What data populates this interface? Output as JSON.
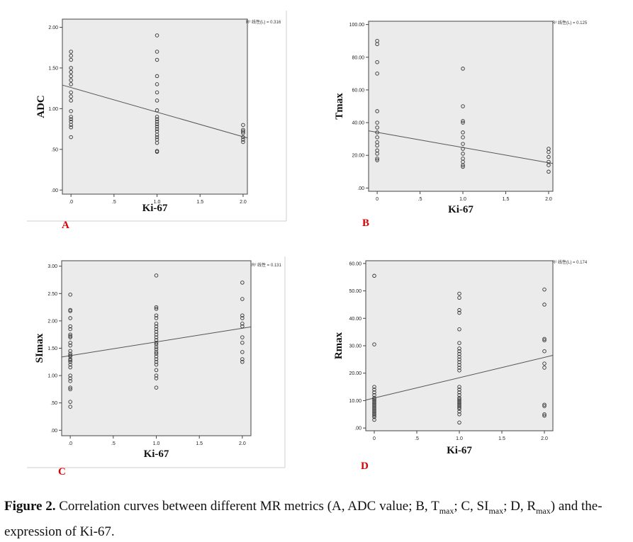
{
  "caption": {
    "lead": "Figure 2.",
    "t1": " Correlation curves between different MR metrics (A, ADC value; B, T",
    "s1": "max",
    "t2": "; C, SI",
    "s2": "max",
    "t3": "; D, R",
    "s3": "max",
    "t4": ") and the-expression of Ki-67."
  },
  "colors": {
    "panel_bg": "#ebebeb",
    "marker": "#333333",
    "fit_line": "#555555",
    "panel_letter": "#dd0000"
  },
  "chart_data": [
    {
      "type": "scatter",
      "panel_label": "A",
      "xlabel": "Ki-67",
      "ylabel": "ADC",
      "xlim": [
        -0.1,
        2.05
      ],
      "ylim": [
        -0.05,
        2.1
      ],
      "xticks": [
        0,
        0.5,
        1.0,
        1.5,
        2.0
      ],
      "xtick_labels": [
        ".0",
        ".5",
        "1.0",
        "1.5",
        "2.0"
      ],
      "yticks": [
        0,
        0.5,
        1.0,
        1.5,
        2.0
      ],
      "ytick_labels": [
        ".00",
        ".50",
        "1.00",
        "1.50",
        "2.00"
      ],
      "legend_text": "R² 线性(L) = 0.316",
      "fit_line": [
        [
          -0.1,
          1.29
        ],
        [
          2.05,
          0.64
        ]
      ],
      "points": [
        [
          0,
          1.7
        ],
        [
          0,
          1.65
        ],
        [
          0,
          1.6
        ],
        [
          0,
          1.5
        ],
        [
          0,
          1.45
        ],
        [
          0,
          1.4
        ],
        [
          0,
          1.35
        ],
        [
          0,
          1.3
        ],
        [
          0,
          1.2
        ],
        [
          0,
          1.15
        ],
        [
          0,
          1.1
        ],
        [
          0,
          0.97
        ],
        [
          0,
          0.9
        ],
        [
          0,
          0.87
        ],
        [
          0,
          0.84
        ],
        [
          0,
          0.8
        ],
        [
          0,
          0.77
        ],
        [
          0,
          0.65
        ],
        [
          1,
          1.9
        ],
        [
          1,
          1.7
        ],
        [
          1,
          1.6
        ],
        [
          1,
          1.4
        ],
        [
          1,
          1.3
        ],
        [
          1,
          1.2
        ],
        [
          1,
          1.1
        ],
        [
          1,
          0.98
        ],
        [
          1,
          0.9
        ],
        [
          1,
          0.87
        ],
        [
          1,
          0.84
        ],
        [
          1,
          0.81
        ],
        [
          1,
          0.78
        ],
        [
          1,
          0.75
        ],
        [
          1,
          0.72
        ],
        [
          1,
          0.68
        ],
        [
          1,
          0.65
        ],
        [
          1,
          0.62
        ],
        [
          1,
          0.58
        ],
        [
          1,
          0.48
        ],
        [
          1,
          0.47
        ],
        [
          2,
          0.8
        ],
        [
          2,
          0.74
        ],
        [
          2,
          0.72
        ],
        [
          2,
          0.7
        ],
        [
          2,
          0.65
        ],
        [
          2,
          0.62
        ],
        [
          2,
          0.59
        ]
      ]
    },
    {
      "type": "scatter",
      "panel_label": "B",
      "xlabel": "Ki-67",
      "ylabel": "Tmax",
      "xlim": [
        -0.1,
        2.05
      ],
      "ylim": [
        -2,
        102
      ],
      "xticks": [
        0,
        0.5,
        1.0,
        1.5,
        2.0
      ],
      "xtick_labels": [
        "0",
        ".5",
        "1.0",
        "1.5",
        "2.0"
      ],
      "yticks": [
        0,
        20,
        40,
        60,
        80,
        100
      ],
      "ytick_labels": [
        ".00",
        "20.00",
        "40.00",
        "60.00",
        "80.00",
        "100.00"
      ],
      "legend_text": "R² 线性(L) = 0.125",
      "fit_line": [
        [
          -0.1,
          35.0
        ],
        [
          2.05,
          15.0
        ]
      ],
      "points": [
        [
          0,
          90
        ],
        [
          0,
          88
        ],
        [
          0,
          77
        ],
        [
          0,
          70
        ],
        [
          0,
          47
        ],
        [
          0,
          40
        ],
        [
          0,
          37
        ],
        [
          0,
          34
        ],
        [
          0,
          31
        ],
        [
          0,
          28
        ],
        [
          0,
          26
        ],
        [
          0,
          23
        ],
        [
          0,
          21
        ],
        [
          0,
          18
        ],
        [
          0,
          17
        ],
        [
          1,
          73
        ],
        [
          1,
          50
        ],
        [
          1,
          41
        ],
        [
          1,
          40
        ],
        [
          1,
          34
        ],
        [
          1,
          31
        ],
        [
          1,
          27
        ],
        [
          1,
          24
        ],
        [
          1,
          21
        ],
        [
          1,
          18
        ],
        [
          1,
          16
        ],
        [
          1,
          14
        ],
        [
          1,
          13
        ],
        [
          2,
          24
        ],
        [
          2,
          22
        ],
        [
          2,
          19
        ],
        [
          2,
          16
        ],
        [
          2,
          14
        ],
        [
          2,
          10
        ]
      ]
    },
    {
      "type": "scatter",
      "panel_label": "C",
      "xlabel": "Ki-67",
      "ylabel": "SImax",
      "xlim": [
        -0.1,
        2.1
      ],
      "ylim": [
        -0.1,
        3.1
      ],
      "xticks": [
        0,
        0.5,
        1.0,
        1.5,
        2.0
      ],
      "xtick_labels": [
        ".0",
        ".5",
        "1.0",
        "1.5",
        "2.0"
      ],
      "yticks": [
        0,
        0.5,
        1.0,
        1.5,
        2.0,
        2.5,
        3.0
      ],
      "ytick_labels": [
        ".00",
        ".50",
        "1.00",
        "1.50",
        "2.00",
        "2.50",
        "3.00"
      ],
      "legend_text": "R² 线性 = 0.131",
      "fit_line": [
        [
          -0.1,
          1.34
        ],
        [
          2.1,
          1.89
        ]
      ],
      "points": [
        [
          0,
          2.48
        ],
        [
          0,
          2.2
        ],
        [
          0,
          2.18
        ],
        [
          0,
          2.05
        ],
        [
          0,
          1.9
        ],
        [
          0,
          1.85
        ],
        [
          0,
          1.75
        ],
        [
          0,
          1.72
        ],
        [
          0,
          1.7
        ],
        [
          0,
          1.6
        ],
        [
          0,
          1.55
        ],
        [
          0,
          1.45
        ],
        [
          0,
          1.4
        ],
        [
          0,
          1.37
        ],
        [
          0,
          1.35
        ],
        [
          0,
          1.3
        ],
        [
          0,
          1.28
        ],
        [
          0,
          1.25
        ],
        [
          0,
          1.2
        ],
        [
          0,
          1.15
        ],
        [
          0,
          1.0
        ],
        [
          0,
          0.95
        ],
        [
          0,
          0.9
        ],
        [
          0,
          0.78
        ],
        [
          0,
          0.75
        ],
        [
          0,
          0.52
        ],
        [
          0,
          0.43
        ],
        [
          1,
          2.83
        ],
        [
          1,
          2.25
        ],
        [
          1,
          2.22
        ],
        [
          1,
          2.1
        ],
        [
          1,
          2.05
        ],
        [
          1,
          1.95
        ],
        [
          1,
          1.9
        ],
        [
          1,
          1.85
        ],
        [
          1,
          1.8
        ],
        [
          1,
          1.75
        ],
        [
          1,
          1.7
        ],
        [
          1,
          1.65
        ],
        [
          1,
          1.6
        ],
        [
          1,
          1.57
        ],
        [
          1,
          1.52
        ],
        [
          1,
          1.48
        ],
        [
          1,
          1.43
        ],
        [
          1,
          1.4
        ],
        [
          1,
          1.35
        ],
        [
          1,
          1.3
        ],
        [
          1,
          1.25
        ],
        [
          1,
          1.2
        ],
        [
          1,
          1.1
        ],
        [
          1,
          1.0
        ],
        [
          1,
          0.95
        ],
        [
          1,
          0.78
        ],
        [
          2,
          2.7
        ],
        [
          2,
          2.4
        ],
        [
          2,
          2.1
        ],
        [
          2,
          2.05
        ],
        [
          2,
          1.95
        ],
        [
          2,
          1.9
        ],
        [
          2,
          1.7
        ],
        [
          2,
          1.6
        ],
        [
          2,
          1.43
        ],
        [
          2,
          1.3
        ],
        [
          2,
          1.25
        ]
      ]
    },
    {
      "type": "scatter",
      "panel_label": "D",
      "xlabel": "Ki-67",
      "ylabel": "Rmax",
      "xlim": [
        -0.1,
        2.1
      ],
      "ylim": [
        -1,
        61
      ],
      "xticks": [
        0,
        0.5,
        1.0,
        1.5,
        2.0
      ],
      "xtick_labels": [
        "0",
        ".5",
        "1.0",
        "1.5",
        "2.0"
      ],
      "yticks": [
        0,
        10,
        20,
        30,
        40,
        50,
        60
      ],
      "ytick_labels": [
        ".00",
        "10.00",
        "20.00",
        "30.00",
        "40.00",
        "50.00",
        "60.00"
      ],
      "legend_text": "R² 线性(L) = 0.174",
      "fit_line": [
        [
          -0.1,
          10.2
        ],
        [
          2.1,
          26.5
        ]
      ],
      "points": [
        [
          0,
          55.5
        ],
        [
          0,
          30.5
        ],
        [
          0,
          15
        ],
        [
          0,
          14
        ],
        [
          0,
          13
        ],
        [
          0,
          12
        ],
        [
          0,
          11
        ],
        [
          0,
          10.5
        ],
        [
          0,
          10
        ],
        [
          0,
          9.5
        ],
        [
          0,
          9
        ],
        [
          0,
          8.5
        ],
        [
          0,
          8
        ],
        [
          0,
          7.5
        ],
        [
          0,
          7
        ],
        [
          0,
          6.5
        ],
        [
          0,
          6
        ],
        [
          0,
          5.5
        ],
        [
          0,
          5
        ],
        [
          0,
          4.5
        ],
        [
          0,
          4
        ],
        [
          0,
          3
        ],
        [
          1,
          49
        ],
        [
          1,
          47.5
        ],
        [
          1,
          43
        ],
        [
          1,
          42
        ],
        [
          1,
          36
        ],
        [
          1,
          31
        ],
        [
          1,
          29
        ],
        [
          1,
          28
        ],
        [
          1,
          27
        ],
        [
          1,
          26
        ],
        [
          1,
          25
        ],
        [
          1,
          24
        ],
        [
          1,
          23
        ],
        [
          1,
          22
        ],
        [
          1,
          21
        ],
        [
          1,
          15
        ],
        [
          1,
          14
        ],
        [
          1,
          13
        ],
        [
          1,
          12
        ],
        [
          1,
          11
        ],
        [
          1,
          10.5
        ],
        [
          1,
          10
        ],
        [
          1,
          9.5
        ],
        [
          1,
          9
        ],
        [
          1,
          8.5
        ],
        [
          1,
          8
        ],
        [
          1,
          7.5
        ],
        [
          1,
          7
        ],
        [
          1,
          6
        ],
        [
          1,
          5
        ],
        [
          1,
          2
        ],
        [
          2,
          50.5
        ],
        [
          2,
          45
        ],
        [
          2,
          32.5
        ],
        [
          2,
          32
        ],
        [
          2,
          28
        ],
        [
          2,
          23.5
        ],
        [
          2,
          22
        ],
        [
          2,
          8.5
        ],
        [
          2,
          8
        ],
        [
          2,
          5
        ],
        [
          2,
          4.5
        ]
      ]
    }
  ]
}
